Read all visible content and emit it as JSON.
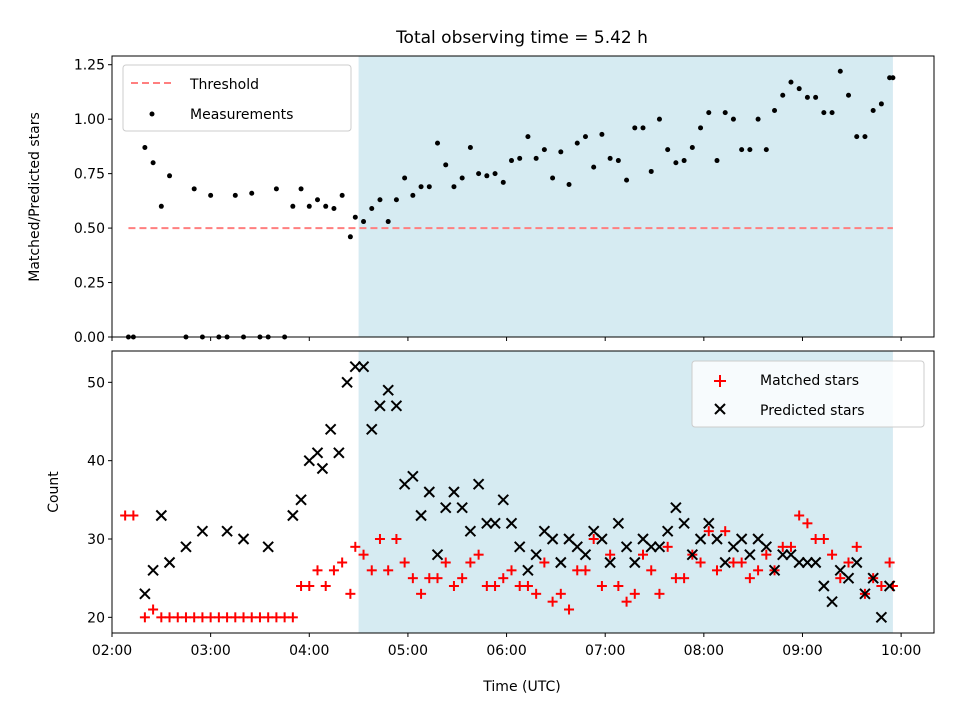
{
  "chart_data": [
    {
      "type": "scatter",
      "title": "Total observing time = 5.42 h",
      "xlabel": "",
      "ylabel": "Matched/Predicted stars",
      "xlim": [
        "02:00",
        "10:20"
      ],
      "ylim": [
        0,
        1.29
      ],
      "yticks": [
        0,
        0.25,
        0.5,
        0.75,
        1.0,
        1.25
      ],
      "ytick_labels": [
        "0.00",
        "0.25",
        "0.50",
        "0.75",
        "1.00",
        "1.25"
      ],
      "xticks": [
        "02:00",
        "03:00",
        "04:00",
        "05:00",
        "06:00",
        "07:00",
        "08:00",
        "09:00",
        "10:00"
      ],
      "shaded_interval": [
        "04:30",
        "09:55"
      ],
      "shade_color": "#add8e6",
      "legend": {
        "placement": "upper left",
        "entries": [
          "Threshold",
          "Measurements"
        ]
      },
      "threshold": {
        "name": "Threshold",
        "value": 0.5,
        "x_range": [
          "02:10",
          "09:55"
        ],
        "color": "#ff7f7f",
        "style": "dashed"
      },
      "series": [
        {
          "name": "Measurements",
          "marker": "dot",
          "color": "#000000",
          "x": [
            "02:10",
            "02:13",
            "02:20",
            "02:25",
            "02:30",
            "02:35",
            "02:45",
            "02:50",
            "02:55",
            "03:00",
            "03:05",
            "03:10",
            "03:15",
            "03:20",
            "03:25",
            "03:30",
            "03:35",
            "03:40",
            "03:45",
            "03:50",
            "03:55",
            "04:00",
            "04:05",
            "04:10",
            "04:15",
            "04:20",
            "04:25",
            "04:28",
            "04:33",
            "04:38",
            "04:43",
            "04:48",
            "04:53",
            "04:58",
            "05:03",
            "05:08",
            "05:13",
            "05:18",
            "05:23",
            "05:28",
            "05:33",
            "05:38",
            "05:43",
            "05:48",
            "05:53",
            "05:58",
            "06:03",
            "06:08",
            "06:13",
            "06:18",
            "06:23",
            "06:28",
            "06:33",
            "06:38",
            "06:43",
            "06:48",
            "06:53",
            "06:58",
            "07:03",
            "07:08",
            "07:13",
            "07:18",
            "07:23",
            "07:28",
            "07:33",
            "07:38",
            "07:43",
            "07:48",
            "07:53",
            "07:58",
            "08:03",
            "08:08",
            "08:13",
            "08:18",
            "08:23",
            "08:28",
            "08:33",
            "08:38",
            "08:43",
            "08:48",
            "08:53",
            "08:58",
            "09:03",
            "09:08",
            "09:13",
            "09:18",
            "09:23",
            "09:28",
            "09:33",
            "09:38",
            "09:43",
            "09:48",
            "09:53",
            "09:55"
          ],
          "y": [
            0.0,
            0.0,
            0.87,
            0.8,
            0.6,
            0.74,
            0.0,
            0.68,
            0.0,
            0.65,
            0.0,
            0.0,
            0.65,
            0.0,
            0.66,
            0.0,
            0.0,
            0.68,
            0.0,
            0.6,
            0.68,
            0.6,
            0.63,
            0.6,
            0.59,
            0.65,
            0.46,
            0.55,
            0.53,
            0.59,
            0.63,
            0.53,
            0.63,
            0.73,
            0.65,
            0.69,
            0.69,
            0.89,
            0.79,
            0.69,
            0.73,
            0.87,
            0.75,
            0.74,
            0.75,
            0.71,
            0.81,
            0.82,
            0.92,
            0.82,
            0.86,
            0.73,
            0.85,
            0.7,
            0.89,
            0.92,
            0.78,
            0.93,
            0.82,
            0.81,
            0.72,
            0.96,
            0.96,
            0.76,
            1.0,
            0.86,
            0.8,
            0.81,
            0.87,
            0.96,
            1.03,
            0.81,
            1.03,
            1.0,
            0.86,
            0.86,
            1.0,
            0.86,
            1.04,
            1.11,
            1.17,
            1.14,
            1.1,
            1.1,
            1.03,
            1.03,
            1.22,
            1.11,
            0.92,
            0.92,
            1.04,
            1.07,
            1.19,
            1.19
          ]
        }
      ]
    },
    {
      "type": "scatter",
      "title": "",
      "xlabel": "Time (UTC)",
      "ylabel": "Count",
      "xlim": [
        "02:00",
        "10:20"
      ],
      "ylim": [
        18,
        54
      ],
      "yticks": [
        20,
        30,
        40,
        50
      ],
      "ytick_labels": [
        "20",
        "30",
        "40",
        "50"
      ],
      "xticks": [
        "02:00",
        "03:00",
        "04:00",
        "05:00",
        "06:00",
        "07:00",
        "08:00",
        "09:00",
        "10:00"
      ],
      "xtick_labels": [
        "02:00",
        "03:00",
        "04:00",
        "05:00",
        "06:00",
        "07:00",
        "08:00",
        "09:00",
        "10:00"
      ],
      "shaded_interval": [
        "04:30",
        "09:55"
      ],
      "shade_color": "#add8e6",
      "legend": {
        "placement": "upper right",
        "entries": [
          "Matched stars",
          "Predicted stars"
        ]
      },
      "series": [
        {
          "name": "Matched stars",
          "marker": "plus",
          "color": "#ff0000",
          "x": [
            "02:08",
            "02:13",
            "02:20",
            "02:25",
            "02:30",
            "02:35",
            "02:40",
            "02:45",
            "02:50",
            "02:55",
            "03:00",
            "03:05",
            "03:10",
            "03:15",
            "03:20",
            "03:25",
            "03:30",
            "03:35",
            "03:40",
            "03:45",
            "03:50",
            "03:55",
            "04:00",
            "04:05",
            "04:10",
            "04:15",
            "04:20",
            "04:25",
            "04:28",
            "04:33",
            "04:38",
            "04:43",
            "04:48",
            "04:53",
            "04:58",
            "05:03",
            "05:08",
            "05:13",
            "05:18",
            "05:23",
            "05:28",
            "05:33",
            "05:38",
            "05:43",
            "05:48",
            "05:53",
            "05:58",
            "06:03",
            "06:08",
            "06:13",
            "06:18",
            "06:23",
            "06:28",
            "06:33",
            "06:38",
            "06:43",
            "06:48",
            "06:53",
            "06:58",
            "07:03",
            "07:08",
            "07:13",
            "07:18",
            "07:23",
            "07:28",
            "07:33",
            "07:38",
            "07:43",
            "07:48",
            "07:53",
            "07:58",
            "08:03",
            "08:08",
            "08:13",
            "08:18",
            "08:23",
            "08:28",
            "08:33",
            "08:38",
            "08:43",
            "08:48",
            "08:53",
            "08:58",
            "09:03",
            "09:08",
            "09:13",
            "09:18",
            "09:23",
            "09:28",
            "09:33",
            "09:38",
            "09:43",
            "09:48",
            "09:53",
            "09:55"
          ],
          "y": [
            33,
            33,
            20,
            21,
            20,
            20,
            20,
            20,
            20,
            20,
            20,
            20,
            20,
            20,
            20,
            20,
            20,
            20,
            20,
            20,
            20,
            24,
            24,
            26,
            24,
            26,
            27,
            23,
            29,
            28,
            26,
            30,
            26,
            30,
            27,
            25,
            23,
            25,
            25,
            27,
            24,
            25,
            27,
            28,
            24,
            24,
            25,
            26,
            24,
            24,
            23,
            27,
            22,
            23,
            21,
            26,
            26,
            30,
            24,
            28,
            24,
            22,
            23,
            28,
            26,
            23,
            29,
            25,
            25,
            28,
            27,
            31,
            26,
            31,
            27,
            27,
            25,
            26,
            28,
            26,
            29,
            29,
            33,
            32,
            30,
            30,
            28,
            25,
            27,
            29,
            23,
            25,
            24,
            27,
            24
          ]
        },
        {
          "name": "Predicted stars",
          "marker": "x",
          "color": "#000000",
          "x": [
            "02:20",
            "02:25",
            "02:30",
            "02:35",
            "02:45",
            "02:55",
            "03:10",
            "03:20",
            "03:35",
            "03:50",
            "03:55",
            "04:00",
            "04:05",
            "04:08",
            "04:13",
            "04:18",
            "04:23",
            "04:28",
            "04:33",
            "04:38",
            "04:43",
            "04:48",
            "04:53",
            "04:58",
            "05:03",
            "05:08",
            "05:13",
            "05:18",
            "05:23",
            "05:28",
            "05:33",
            "05:38",
            "05:43",
            "05:48",
            "05:53",
            "05:58",
            "06:03",
            "06:08",
            "06:13",
            "06:18",
            "06:23",
            "06:28",
            "06:33",
            "06:38",
            "06:43",
            "06:48",
            "06:53",
            "06:58",
            "07:03",
            "07:08",
            "07:13",
            "07:18",
            "07:23",
            "07:28",
            "07:33",
            "07:38",
            "07:43",
            "07:48",
            "07:53",
            "07:58",
            "08:03",
            "08:08",
            "08:13",
            "08:18",
            "08:23",
            "08:28",
            "08:33",
            "08:38",
            "08:43",
            "08:48",
            "08:53",
            "08:58",
            "09:03",
            "09:08",
            "09:13",
            "09:18",
            "09:23",
            "09:28",
            "09:33",
            "09:38",
            "09:43",
            "09:48",
            "09:53"
          ],
          "y": [
            23,
            26,
            33,
            27,
            29,
            31,
            31,
            30,
            29,
            33,
            35,
            40,
            41,
            39,
            44,
            41,
            50,
            52,
            52,
            44,
            47,
            49,
            47,
            37,
            38,
            33,
            36,
            28,
            34,
            36,
            34,
            31,
            37,
            32,
            32,
            35,
            32,
            29,
            26,
            28,
            31,
            30,
            27,
            30,
            29,
            28,
            31,
            30,
            27,
            32,
            29,
            27,
            30,
            29,
            29,
            31,
            34,
            32,
            28,
            30,
            32,
            30,
            27,
            29,
            30,
            28,
            30,
            29,
            26,
            28,
            28,
            27,
            27,
            27,
            24,
            22,
            26,
            25,
            27,
            23,
            25,
            20,
            24
          ]
        }
      ]
    }
  ]
}
